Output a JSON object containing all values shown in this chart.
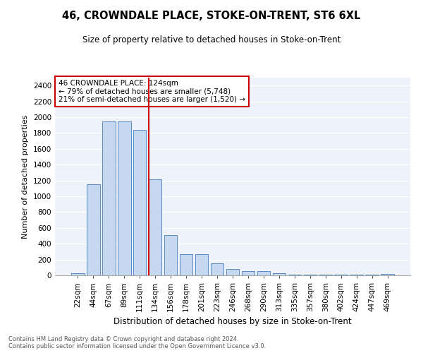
{
  "title": "46, CROWNDALE PLACE, STOKE-ON-TRENT, ST6 6XL",
  "subtitle": "Size of property relative to detached houses in Stoke-on-Trent",
  "xlabel": "Distribution of detached houses by size in Stoke-on-Trent",
  "ylabel": "Number of detached properties",
  "footnote1": "Contains HM Land Registry data © Crown copyright and database right 2024.",
  "footnote2": "Contains public sector information licensed under the Open Government Licence v3.0.",
  "annotation_line1": "46 CROWNDALE PLACE: 124sqm",
  "annotation_line2": "← 79% of detached houses are smaller (5,748)",
  "annotation_line3": "21% of semi-detached houses are larger (1,520) →",
  "bar_color": "#c5d8f0",
  "bar_edge_color": "#5a8ac6",
  "line_color": "#cc0000",
  "annotation_box_color": "#cc0000",
  "background_color": "#edf2fb",
  "grid_color": "#ffffff",
  "categories": [
    "22sqm",
    "44sqm",
    "67sqm",
    "89sqm",
    "111sqm",
    "134sqm",
    "156sqm",
    "178sqm",
    "201sqm",
    "223sqm",
    "246sqm",
    "268sqm",
    "290sqm",
    "313sqm",
    "335sqm",
    "357sqm",
    "380sqm",
    "402sqm",
    "424sqm",
    "447sqm",
    "469sqm"
  ],
  "values": [
    30,
    1150,
    1950,
    1950,
    1840,
    1210,
    510,
    265,
    265,
    155,
    80,
    50,
    50,
    25,
    10,
    10,
    10,
    10,
    5,
    5,
    20
  ],
  "ylim": [
    0,
    2500
  ],
  "yticks": [
    0,
    200,
    400,
    600,
    800,
    1000,
    1200,
    1400,
    1600,
    1800,
    2000,
    2200,
    2400
  ],
  "title_fontsize": 10.5,
  "subtitle_fontsize": 8.5,
  "xlabel_fontsize": 8.5,
  "ylabel_fontsize": 8,
  "tick_fontsize": 7.5,
  "annotation_fontsize": 7.5,
  "footnote_fontsize": 6
}
